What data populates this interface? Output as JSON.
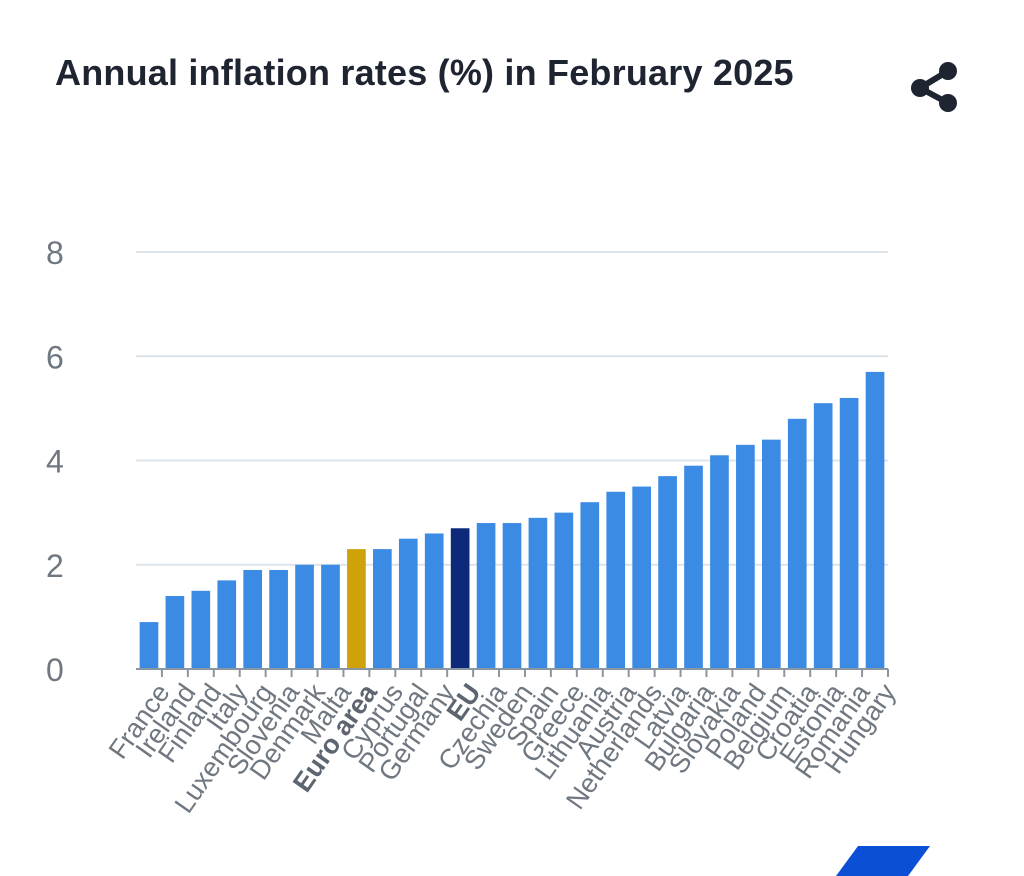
{
  "header": {
    "title": "Annual inflation rates (%) in February 2025",
    "share_icon": "share-icon"
  },
  "colors": {
    "default_bar": "#3b8ae3",
    "euro_area_bar": "#cfa10a",
    "eu_bar": "#0d2a7a",
    "grid": "#dde4ea",
    "axis": "#8c96a0",
    "tick_label": "#6f7780",
    "logo": "#0b4fd6"
  },
  "chart_data": {
    "type": "bar",
    "categories": [
      "France",
      "Ireland",
      "Finland",
      "Italy",
      "Luxembourg",
      "Slovenia",
      "Denmark",
      "Malta",
      "Euro area",
      "Cyprus",
      "Portugal",
      "Germany",
      "EU",
      "Czechia",
      "Sweden",
      "Spain",
      "Greece",
      "Lithuania",
      "Austria",
      "Netherlands",
      "Latvia",
      "Bulgaria",
      "Slovakia",
      "Poland",
      "Belgium",
      "Croatia",
      "Estonia",
      "Romania",
      "Hungary"
    ],
    "values": [
      0.9,
      1.4,
      1.5,
      1.7,
      1.9,
      1.9,
      2.0,
      2.0,
      2.3,
      2.3,
      2.5,
      2.6,
      2.7,
      2.8,
      2.8,
      2.9,
      3.0,
      3.2,
      3.4,
      3.5,
      3.7,
      3.9,
      4.1,
      4.3,
      4.4,
      4.8,
      5.1,
      5.2,
      5.7
    ],
    "highlight": {
      "Euro area": "euro_area",
      "EU": "eu"
    },
    "bold_labels": [
      "Euro area",
      "EU"
    ],
    "title": "Annual inflation rates (%) in February 2025",
    "xlabel": "",
    "ylabel": "",
    "ylim": [
      0,
      8
    ],
    "yticks": [
      0,
      2,
      4,
      6,
      8
    ],
    "grid": true,
    "legend": "none"
  }
}
